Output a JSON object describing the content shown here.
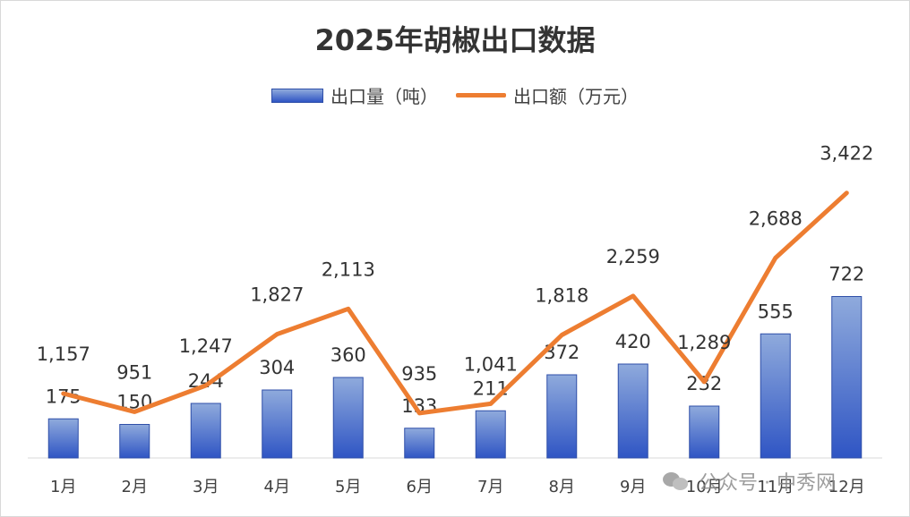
{
  "chart_data": {
    "type": "bar",
    "title": "2025年胡椒出口数据",
    "categories": [
      "1月",
      "2月",
      "3月",
      "4月",
      "5月",
      "6月",
      "7月",
      "8月",
      "9月",
      "10月",
      "11月",
      "12月"
    ],
    "series": [
      {
        "name": "出口量（吨）",
        "type": "bar",
        "color": "#4472c4",
        "values": [
          175,
          150,
          244,
          304,
          360,
          133,
          211,
          372,
          420,
          232,
          555,
          722
        ],
        "labels": [
          "175",
          "150",
          "244",
          "304",
          "360",
          "133",
          "211",
          "372",
          "420",
          "232",
          "555",
          "722"
        ]
      },
      {
        "name": "出口额（万元）",
        "type": "line",
        "color": "#ed7d31",
        "values": [
          1157,
          951,
          1247,
          1827,
          2113,
          935,
          1041,
          1818,
          2259,
          1289,
          2688,
          3422
        ],
        "labels": [
          "1,157",
          "951",
          "1,247",
          "1,827",
          "2,113",
          "935",
          "1,041",
          "1,818",
          "2,259",
          "1,289",
          "2,688",
          "3,422"
        ]
      }
    ],
    "legend": "top",
    "grid": false
  },
  "watermark": "公众号 · 中秀网"
}
